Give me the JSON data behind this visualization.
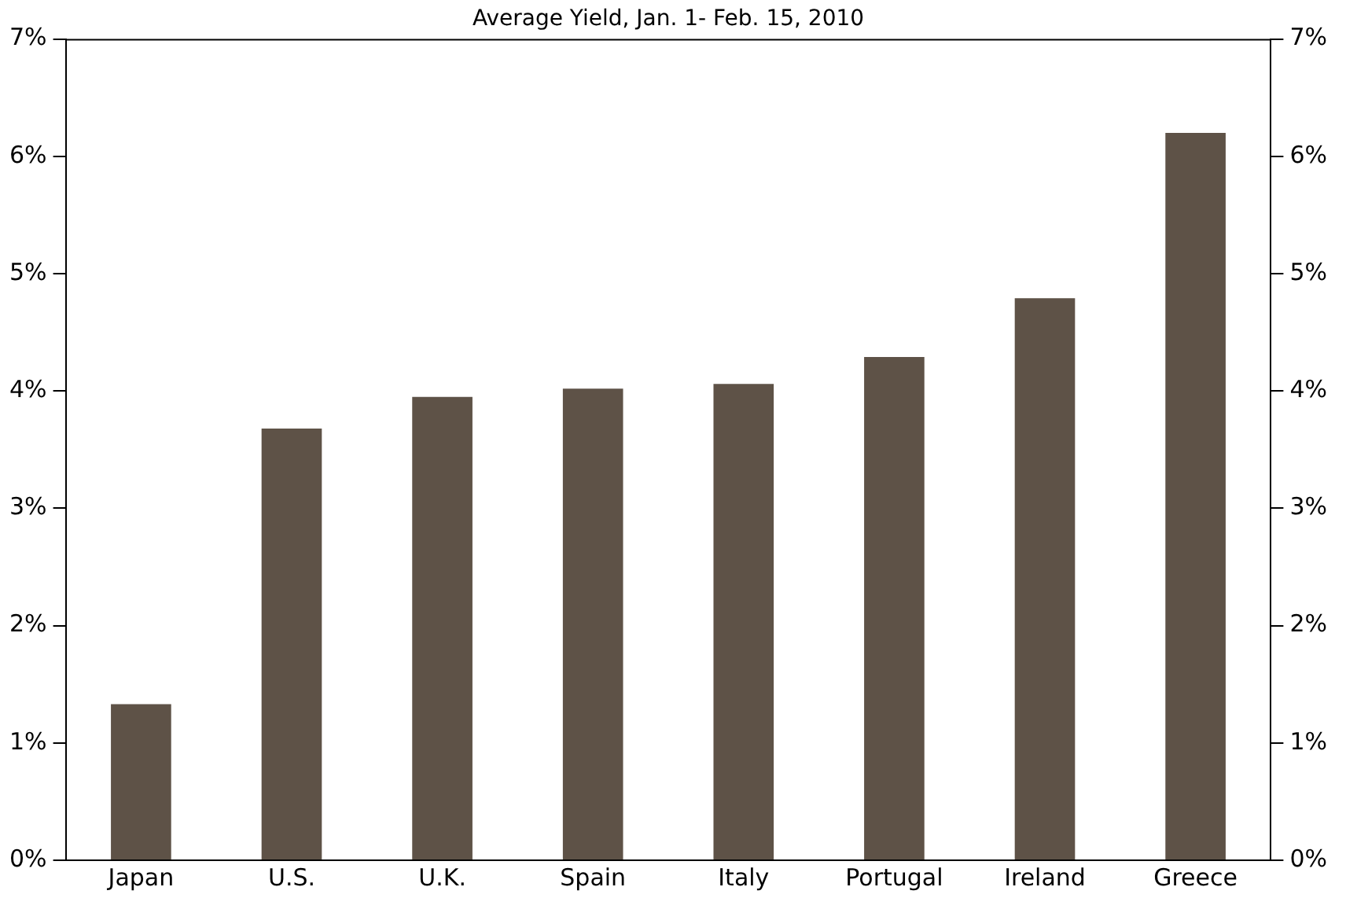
{
  "chart_data": {
    "type": "bar",
    "title": "Average Yield, Jan. 1- Feb. 15, 2010",
    "categories": [
      "Japan",
      "U.S.",
      "U.K.",
      "Spain",
      "Italy",
      "Portugal",
      "Ireland",
      "Greece"
    ],
    "values": [
      1.33,
      3.68,
      3.95,
      4.02,
      4.06,
      4.29,
      4.79,
      6.2
    ],
    "color": "#5e5247",
    "ylim": [
      0,
      7
    ],
    "yticks": [
      {
        "value": 0,
        "label": "0%"
      },
      {
        "value": 1,
        "label": "1%"
      },
      {
        "value": 2,
        "label": "2%"
      },
      {
        "value": 3,
        "label": "3%"
      },
      {
        "value": 4,
        "label": "4%"
      },
      {
        "value": 5,
        "label": "5%"
      },
      {
        "value": 6,
        "label": "6%"
      },
      {
        "value": 7,
        "label": "7%"
      }
    ],
    "y2lim": [
      0,
      7
    ],
    "y2ticks": [
      {
        "value": 0,
        "label": "0%"
      },
      {
        "value": 1,
        "label": "1%"
      },
      {
        "value": 2,
        "label": "2%"
      },
      {
        "value": 3,
        "label": "3%"
      },
      {
        "value": 4,
        "label": "4%"
      },
      {
        "value": 5,
        "label": "5%"
      },
      {
        "value": 6,
        "label": "6%"
      },
      {
        "value": 7,
        "label": "7%"
      }
    ],
    "grid": false,
    "legend": false
  }
}
